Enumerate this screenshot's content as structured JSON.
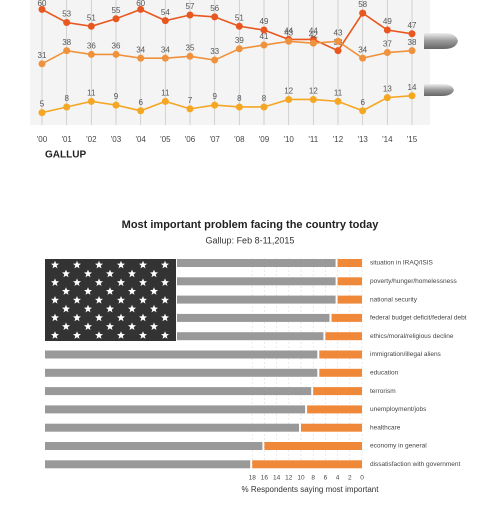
{
  "chart_data": [
    {
      "type": "line",
      "source": "GALLUP",
      "categories": [
        "'00",
        "'01",
        "'02",
        "'03",
        "'04",
        "'05",
        "'06",
        "'07",
        "'08",
        "'09",
        "'10",
        "'11",
        "'12",
        "'13",
        "'14",
        "'15"
      ],
      "series": [
        {
          "color": "#e8571f",
          "values": [
            60,
            53,
            51,
            55,
            60,
            54,
            57,
            56,
            51,
            49,
            44,
            44,
            38,
            58,
            49,
            47
          ]
        },
        {
          "color": "#f0923c",
          "values": [
            31,
            38,
            36,
            36,
            34,
            34,
            35,
            33,
            39,
            41,
            43,
            42,
            43,
            34,
            37,
            38
          ]
        },
        {
          "color": "#f5a623",
          "values": [
            5,
            8,
            11,
            9,
            6,
            11,
            7,
            9,
            8,
            8,
            12,
            12,
            11,
            6,
            13,
            14
          ]
        }
      ],
      "ylim": [
        0,
        65
      ],
      "grid": true
    },
    {
      "type": "hbar",
      "title": "Most important problem facing the country today",
      "subtitle": "Gallup: Feb 8-11,2015",
      "xlabel": "% Respondents saying most important",
      "categories": [
        "situation in IRAQ/ISIS",
        "poverty/hunger/homelessness",
        "national security",
        "federal budget deficit/federal debt",
        "ethics/moral/religious decline",
        "immigration/illegal aliens",
        "education",
        "terrorism",
        "unemployment/jobs",
        "healthcare",
        "economy in general",
        "dissatisfaction with government"
      ],
      "values": [
        4,
        4,
        4,
        5,
        6,
        7,
        7,
        8,
        9,
        10,
        16,
        18
      ],
      "color": "#f0883a",
      "xlim": [
        0,
        18
      ],
      "xticks": [
        18,
        16,
        14,
        12,
        10,
        8,
        6,
        4,
        2,
        0
      ],
      "x_reversed": true,
      "grid": true
    }
  ]
}
